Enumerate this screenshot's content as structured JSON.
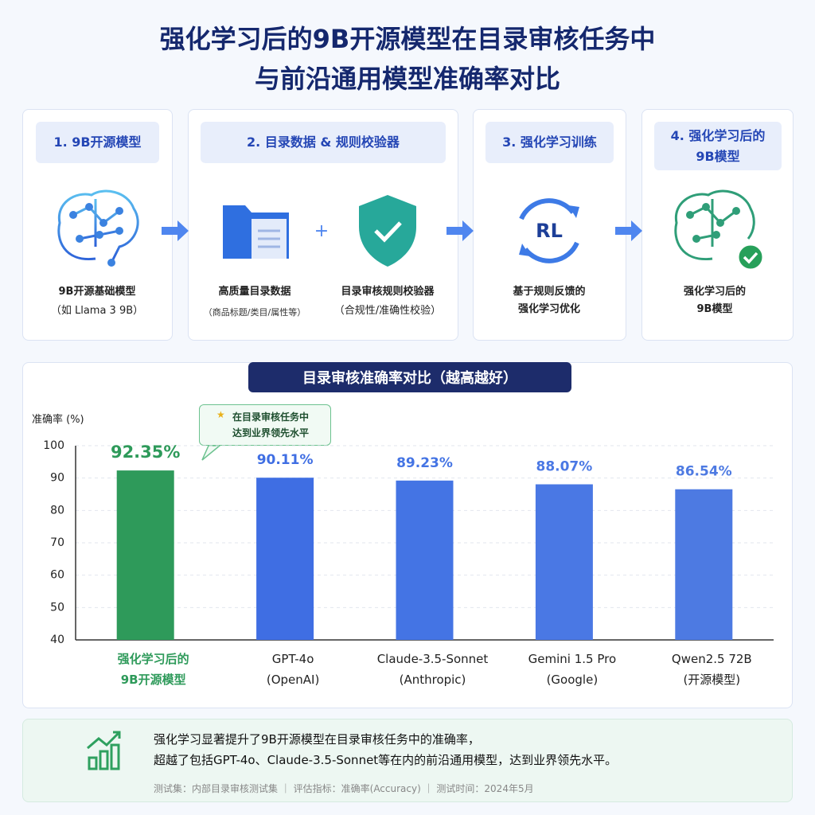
{
  "header": {
    "title": [
      "强化学习后的9B开源模型在目录审核任务中",
      "与前沿通用模型准确率对比"
    ]
  },
  "pipeline": {
    "steps": [
      {
        "title": "1. 9B开源模型",
        "items": [
          {
            "label": "9B开源基础模型",
            "note": "（如 Llama 3 9B）"
          }
        ]
      },
      {
        "title": "2. 目录数据 & 规则校验器",
        "items": [
          {
            "label": "高质量目录数据",
            "note": "（商品标题/类目/属性等）"
          },
          {
            "label": "目录审核规则校验器",
            "note": "（合规性/准确性校验）"
          }
        ]
      },
      {
        "title": "3. 强化学习训练",
        "icon_text": "RL",
        "items": [
          {
            "label": "基于规则反馈的\n强化学习优化"
          }
        ]
      },
      {
        "title": "4. 强化学习后的\n9B模型",
        "items": [
          {
            "label": "强化学习后的\n9B模型"
          }
        ]
      }
    ]
  },
  "chart_data": {
    "type": "bar",
    "title": "目录审核准确率对比（越高越好）",
    "y_label": "准确率 (%)",
    "categories": [
      "强化学习后的\n9B开源模型",
      "GPT-4o\n(OpenAI)",
      "Claude-3.5-Sonnet\n(Anthropic)",
      "Gemini 1.5 Pro\n(Google)",
      "Qwen2.5 72B\n(开源模型)"
    ],
    "values": [
      92.35,
      90.11,
      89.23,
      88.07,
      86.54
    ],
    "value_labels": [
      "92.35%",
      "90.11%",
      "89.23%",
      "88.07%",
      "86.54%"
    ],
    "colors": [
      "#2e9a5a",
      "#3f6ee3",
      "#4474e4",
      "#4a78e4",
      "#4d7ae2"
    ],
    "ylim": [
      40,
      100
    ],
    "yticks": [
      40,
      50,
      60,
      70,
      80,
      90,
      100
    ],
    "grid": true,
    "annotation": "在目录审核任务中\n达到业界领先水平"
  },
  "summary": {
    "text": [
      "强化学习显著提升了9B开源模型在目录审核任务中的准确率，",
      "超越了包括GPT-4o、Claude-3.5-Sonnet等在内的前沿通用模型，达到业界领先水平。"
    ],
    "footnote": "测试集：内部目录审核测试集 ｜ 评估指标：准确率(Accuracy) ｜ 测试时间：2024年5月"
  }
}
